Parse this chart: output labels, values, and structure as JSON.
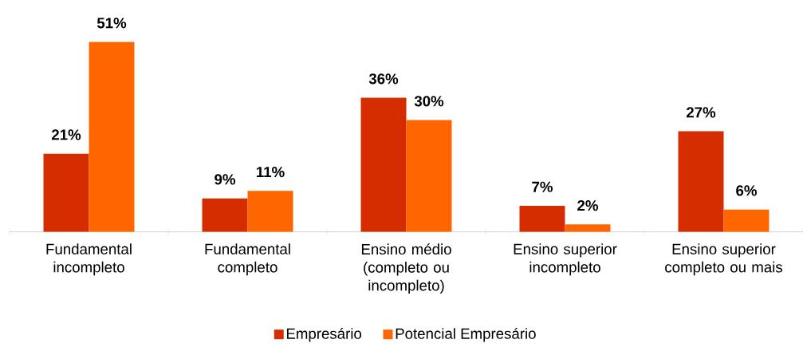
{
  "chart_data": {
    "type": "bar",
    "categories": [
      "Fundamental incompleto",
      "Fundamental completo",
      "Ensino médio (completo ou incompleto)",
      "Ensino superior incompleto",
      "Ensino superior completo ou mais"
    ],
    "series": [
      {
        "name": "Empresário",
        "color": "#d62d00",
        "values": [
          21,
          9,
          36,
          7,
          27
        ],
        "value_labels": [
          "21%",
          "9%",
          "36%",
          "7%",
          "27%"
        ]
      },
      {
        "name": "Potencial Empresário",
        "color": "#ff6600",
        "values": [
          51,
          11,
          30,
          2,
          6
        ],
        "value_labels": [
          "51%",
          "11%",
          "30%",
          "2%",
          "6%"
        ]
      }
    ],
    "legend": "bottom"
  }
}
